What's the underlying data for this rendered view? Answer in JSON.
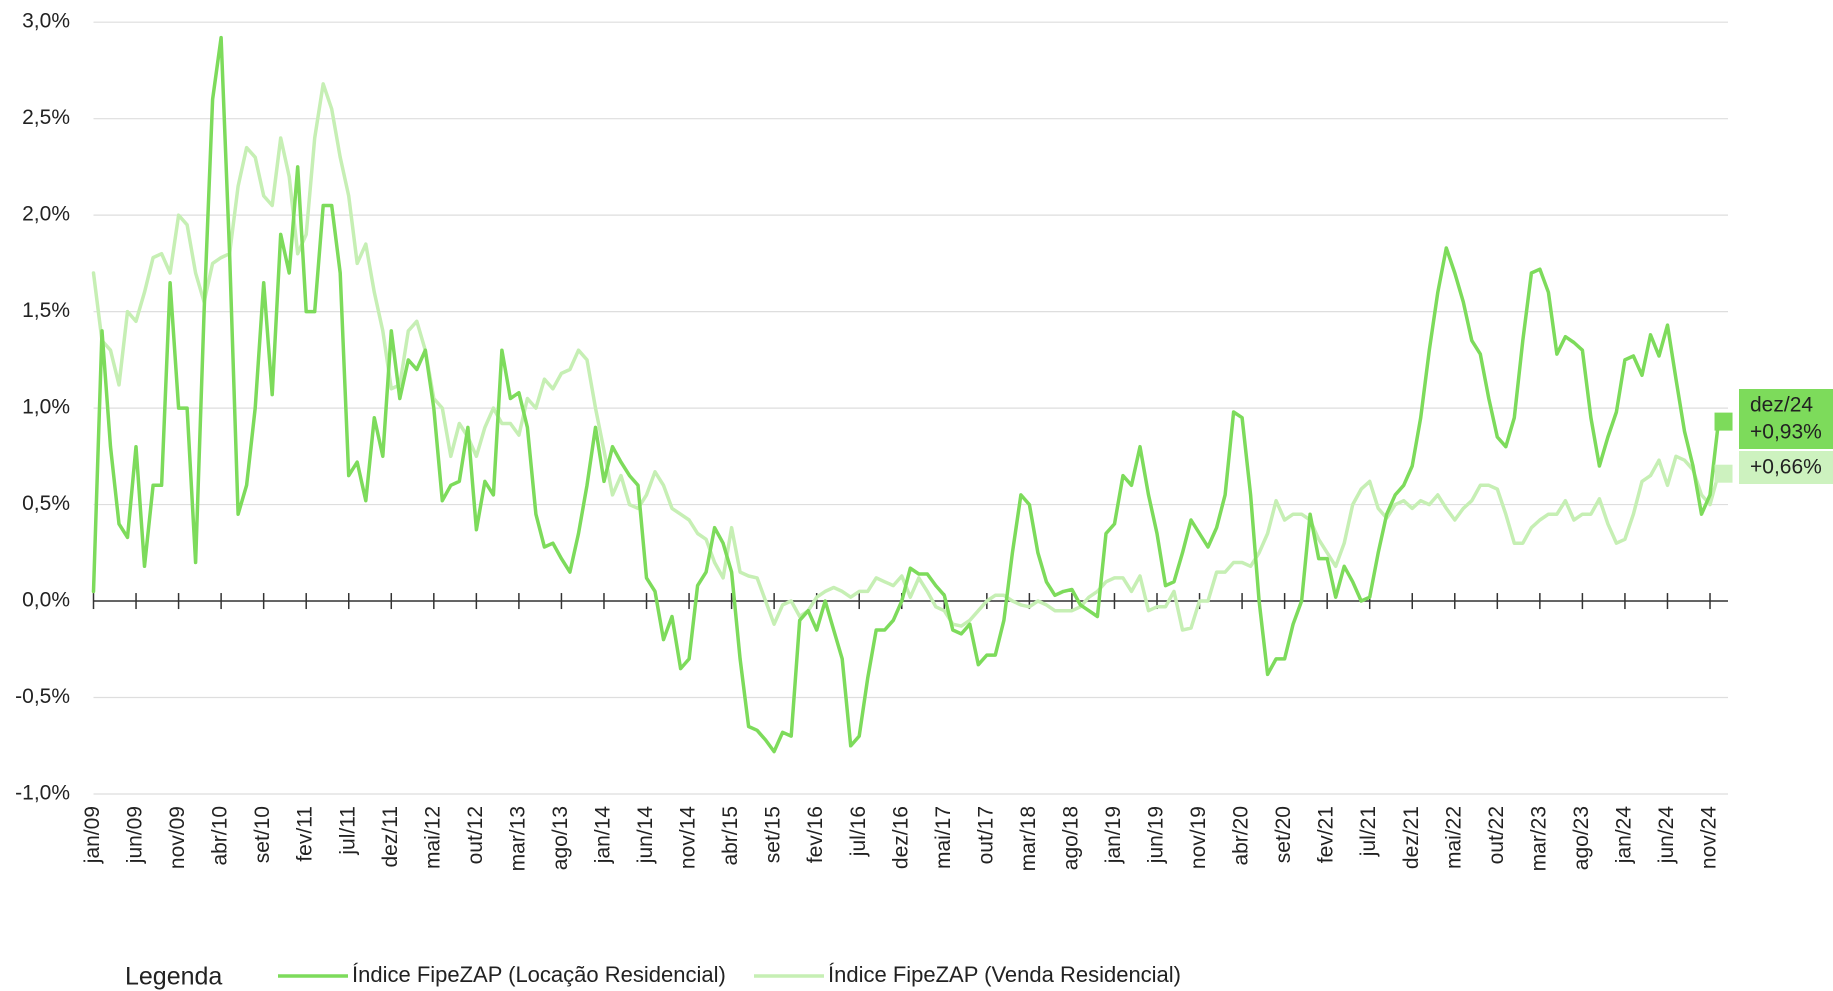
{
  "chart_data": {
    "type": "line",
    "categories": [
      "jan/09",
      null,
      null,
      null,
      null,
      "jun/09",
      null,
      null,
      null,
      null,
      "nov/09",
      null,
      null,
      null,
      null,
      "abr/10",
      null,
      null,
      null,
      null,
      "set/10",
      null,
      null,
      null,
      null,
      "fev/11",
      null,
      null,
      null,
      null,
      "jul/11",
      null,
      null,
      null,
      null,
      "dez/11",
      null,
      null,
      null,
      null,
      "mai/12",
      null,
      null,
      null,
      null,
      "out/12",
      null,
      null,
      null,
      null,
      "mar/13",
      null,
      null,
      null,
      null,
      "ago/13",
      null,
      null,
      null,
      null,
      "jan/14",
      null,
      null,
      null,
      null,
      "jun/14",
      null,
      null,
      null,
      null,
      "nov/14",
      null,
      null,
      null,
      null,
      "abr/15",
      null,
      null,
      null,
      null,
      "set/15",
      null,
      null,
      null,
      null,
      "fev/16",
      null,
      null,
      null,
      null,
      "jul/16",
      null,
      null,
      null,
      null,
      "dez/16",
      null,
      null,
      null,
      null,
      "mai/17",
      null,
      null,
      null,
      null,
      "out/17",
      null,
      null,
      null,
      null,
      "mar/18",
      null,
      null,
      null,
      null,
      "ago/18",
      null,
      null,
      null,
      null,
      "jan/19",
      null,
      null,
      null,
      null,
      "jun/19",
      null,
      null,
      null,
      null,
      "nov/19",
      null,
      null,
      null,
      null,
      "abr/20",
      null,
      null,
      null,
      null,
      "set/20",
      null,
      null,
      null,
      null,
      "fev/21",
      null,
      null,
      null,
      null,
      "jul/21",
      null,
      null,
      null,
      null,
      "dez/21",
      null,
      null,
      null,
      null,
      "mai/22",
      null,
      null,
      null,
      null,
      "out/22",
      null,
      null,
      null,
      null,
      "mar/23",
      null,
      null,
      null,
      null,
      "ago/23",
      null,
      null,
      null,
      null,
      "jan/24",
      null,
      null,
      null,
      null,
      "jun/24",
      null,
      null,
      null,
      null,
      "nov/24",
      null
    ],
    "series": [
      {
        "name": "Índice FipeZAP (Locação Residencial)",
        "color": "#7ddb5b",
        "values": [
          0.05,
          1.4,
          0.8,
          0.4,
          0.33,
          0.8,
          0.18,
          0.6,
          0.6,
          1.65,
          1.0,
          1.0,
          0.2,
          1.5,
          2.6,
          2.92,
          1.8,
          0.45,
          0.6,
          1.0,
          1.65,
          1.07,
          1.9,
          1.7,
          2.25,
          1.5,
          1.5,
          2.05,
          2.05,
          1.7,
          0.65,
          0.72,
          0.52,
          0.95,
          0.75,
          1.4,
          1.05,
          1.25,
          1.2,
          1.3,
          1.0,
          0.52,
          0.6,
          0.62,
          0.9,
          0.37,
          0.62,
          0.55,
          1.3,
          1.05,
          1.08,
          0.9,
          0.45,
          0.28,
          0.3,
          0.22,
          0.15,
          0.35,
          0.6,
          0.9,
          0.62,
          0.8,
          0.72,
          0.65,
          0.6,
          0.12,
          0.05,
          -0.2,
          -0.08,
          -0.35,
          -0.3,
          0.08,
          0.15,
          0.38,
          0.3,
          0.15,
          -0.3,
          -0.65,
          -0.67,
          -0.72,
          -0.78,
          -0.68,
          -0.7,
          -0.1,
          -0.05,
          -0.15,
          0.0,
          -0.15,
          -0.3,
          -0.75,
          -0.7,
          -0.4,
          -0.15,
          -0.15,
          -0.1,
          0.0,
          0.17,
          0.14,
          0.14,
          0.08,
          0.03,
          -0.15,
          -0.17,
          -0.12,
          -0.33,
          -0.28,
          -0.28,
          -0.1,
          0.25,
          0.55,
          0.5,
          0.25,
          0.1,
          0.03,
          0.05,
          0.06,
          -0.02,
          -0.05,
          -0.08,
          0.35,
          0.4,
          0.65,
          0.6,
          0.8,
          0.55,
          0.35,
          0.08,
          0.1,
          0.25,
          0.42,
          0.35,
          0.28,
          0.38,
          0.55,
          0.98,
          0.95,
          0.55,
          0.0,
          -0.38,
          -0.3,
          -0.3,
          -0.12,
          0.0,
          0.45,
          0.22,
          0.22,
          0.02,
          0.18,
          0.1,
          0.0,
          0.02,
          0.25,
          0.45,
          0.55,
          0.6,
          0.7,
          0.95,
          1.3,
          1.6,
          1.83,
          1.7,
          1.55,
          1.35,
          1.28,
          1.05,
          0.85,
          0.8,
          0.95,
          1.35,
          1.7,
          1.72,
          1.6,
          1.28,
          1.37,
          1.34,
          1.3,
          0.95,
          0.7,
          0.85,
          0.98,
          1.25,
          1.27,
          1.17,
          1.38,
          1.27,
          1.43,
          1.15,
          0.88,
          0.7,
          0.45,
          0.55,
          0.93
        ]
      },
      {
        "name": "Índice FipeZAP (Venda Residencial)",
        "color": "#c6efb4",
        "values": [
          1.7,
          1.35,
          1.3,
          1.12,
          1.5,
          1.45,
          1.6,
          1.78,
          1.8,
          1.7,
          2.0,
          1.95,
          1.7,
          1.55,
          1.75,
          1.78,
          1.8,
          2.15,
          2.35,
          2.3,
          2.1,
          2.05,
          2.4,
          2.2,
          1.8,
          1.9,
          2.4,
          2.68,
          2.55,
          2.3,
          2.1,
          1.75,
          1.85,
          1.6,
          1.4,
          1.1,
          1.12,
          1.4,
          1.45,
          1.3,
          1.05,
          1.0,
          0.75,
          0.92,
          0.85,
          0.75,
          0.9,
          1.0,
          0.92,
          0.92,
          0.86,
          1.05,
          1.0,
          1.15,
          1.1,
          1.18,
          1.2,
          1.3,
          1.25,
          1.0,
          0.78,
          0.55,
          0.65,
          0.5,
          0.48,
          0.55,
          0.67,
          0.6,
          0.48,
          0.45,
          0.42,
          0.35,
          0.32,
          0.2,
          0.12,
          0.38,
          0.15,
          0.13,
          0.12,
          0.0,
          -0.12,
          -0.02,
          0.0,
          -0.08,
          -0.05,
          0.02,
          0.05,
          0.07,
          0.05,
          0.02,
          0.05,
          0.05,
          0.12,
          0.1,
          0.08,
          0.13,
          0.02,
          0.12,
          0.05,
          -0.03,
          -0.05,
          -0.12,
          -0.13,
          -0.1,
          -0.05,
          0.0,
          0.03,
          0.03,
          0.0,
          -0.02,
          -0.03,
          0.0,
          -0.02,
          -0.05,
          -0.05,
          -0.05,
          -0.03,
          0.02,
          0.05,
          0.1,
          0.12,
          0.12,
          0.05,
          0.13,
          -0.05,
          -0.03,
          -0.03,
          0.05,
          -0.15,
          -0.14,
          0.0,
          0.0,
          0.15,
          0.15,
          0.2,
          0.2,
          0.18,
          0.25,
          0.35,
          0.52,
          0.42,
          0.45,
          0.45,
          0.42,
          0.32,
          0.25,
          0.18,
          0.3,
          0.5,
          0.58,
          0.62,
          0.48,
          0.43,
          0.5,
          0.52,
          0.48,
          0.52,
          0.5,
          0.55,
          0.48,
          0.42,
          0.48,
          0.52,
          0.6,
          0.6,
          0.58,
          0.45,
          0.3,
          0.3,
          0.38,
          0.42,
          0.45,
          0.45,
          0.52,
          0.42,
          0.45,
          0.45,
          0.53,
          0.4,
          0.3,
          0.32,
          0.45,
          0.62,
          0.65,
          0.73,
          0.6,
          0.75,
          0.73,
          0.68,
          0.55,
          0.5,
          0.66
        ]
      }
    ],
    "ylim": [
      -1,
      3
    ],
    "yticks": [
      {
        "value": -1,
        "label": "-1,0%"
      },
      {
        "value": -0.5,
        "label": "-0,5%"
      },
      {
        "value": 0,
        "label": "0,0%"
      },
      {
        "value": 0.5,
        "label": "0,5%"
      },
      {
        "value": 1,
        "label": "1,0%"
      },
      {
        "value": 1.5,
        "label": "1,5%"
      },
      {
        "value": 2,
        "label": "2,0%"
      },
      {
        "value": 2.5,
        "label": "2,5%"
      },
      {
        "value": 3,
        "label": "3,0%"
      }
    ],
    "grid": true,
    "legend_title": "Legenda",
    "annotations": [
      {
        "series": 0,
        "lines": [
          "dez/24",
          "+0,93%"
        ],
        "color": "#7ddb5b"
      },
      {
        "series": 1,
        "lines": [
          "+0,66%"
        ],
        "color": "#cdf2bf"
      }
    ]
  }
}
